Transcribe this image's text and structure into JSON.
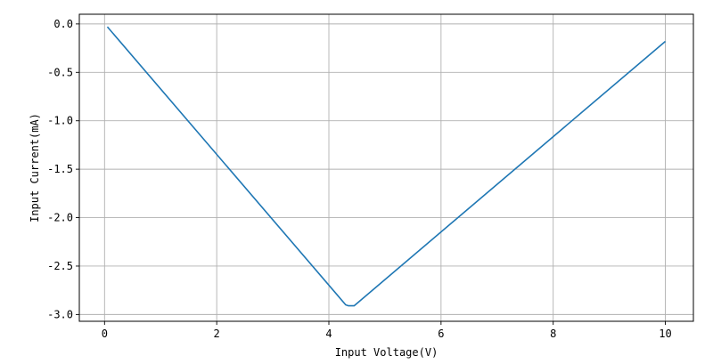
{
  "chart_data": {
    "type": "line",
    "title": "",
    "xlabel": "Input Voltage(V)",
    "ylabel": "Input Current(mA)",
    "xlim": [
      -0.45,
      10.5
    ],
    "ylim": [
      -3.07,
      0.1
    ],
    "xticks": [
      0,
      2,
      4,
      6,
      8,
      10
    ],
    "xtick_labels": [
      "0",
      "2",
      "4",
      "6",
      "8",
      "10"
    ],
    "yticks": [
      0.0,
      -0.5,
      -1.0,
      -1.5,
      -2.0,
      -2.5,
      -3.0
    ],
    "ytick_labels": [
      "0.0",
      "-0.5",
      "-1.0",
      "-1.5",
      "-2.0",
      "-2.5",
      "-3.0"
    ],
    "grid": true,
    "legend": "none",
    "series": [
      {
        "color": "#1f77b4",
        "x": [
          0.05,
          4.3,
          4.35,
          4.45,
          10.0
        ],
        "y": [
          -0.03,
          -2.9,
          -2.91,
          -2.91,
          -0.18
        ]
      }
    ]
  }
}
